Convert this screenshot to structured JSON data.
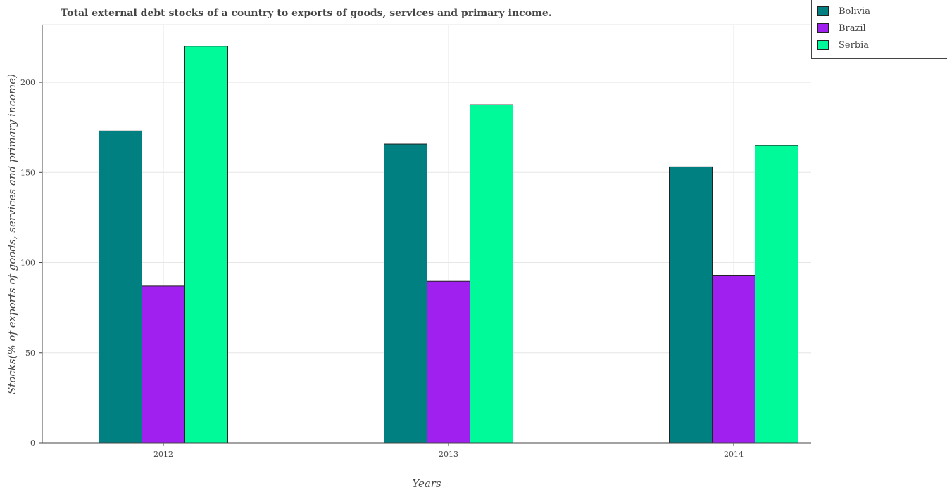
{
  "chart_data": {
    "type": "bar",
    "title": "Total external debt stocks of a country to exports of goods, services and primary income.",
    "xlabel": "Years",
    "ylabel": "Stocks(% of exports of goods, services and primary income)",
    "categories": [
      "2012",
      "2013",
      "2014"
    ],
    "ylim": [
      0,
      232
    ],
    "yticks": [
      0,
      50,
      100,
      150,
      200
    ],
    "grid": true,
    "legend_position": "top-right",
    "series": [
      {
        "name": "Bolivia",
        "color": "#008080",
        "values": [
          173,
          165.7,
          153.1
        ]
      },
      {
        "name": "Brazil",
        "color": "#a020f0",
        "values": [
          87,
          89.6,
          93
        ]
      },
      {
        "name": "Serbia",
        "color": "#00fa9a",
        "values": [
          220,
          187.5,
          164.9
        ]
      }
    ]
  }
}
